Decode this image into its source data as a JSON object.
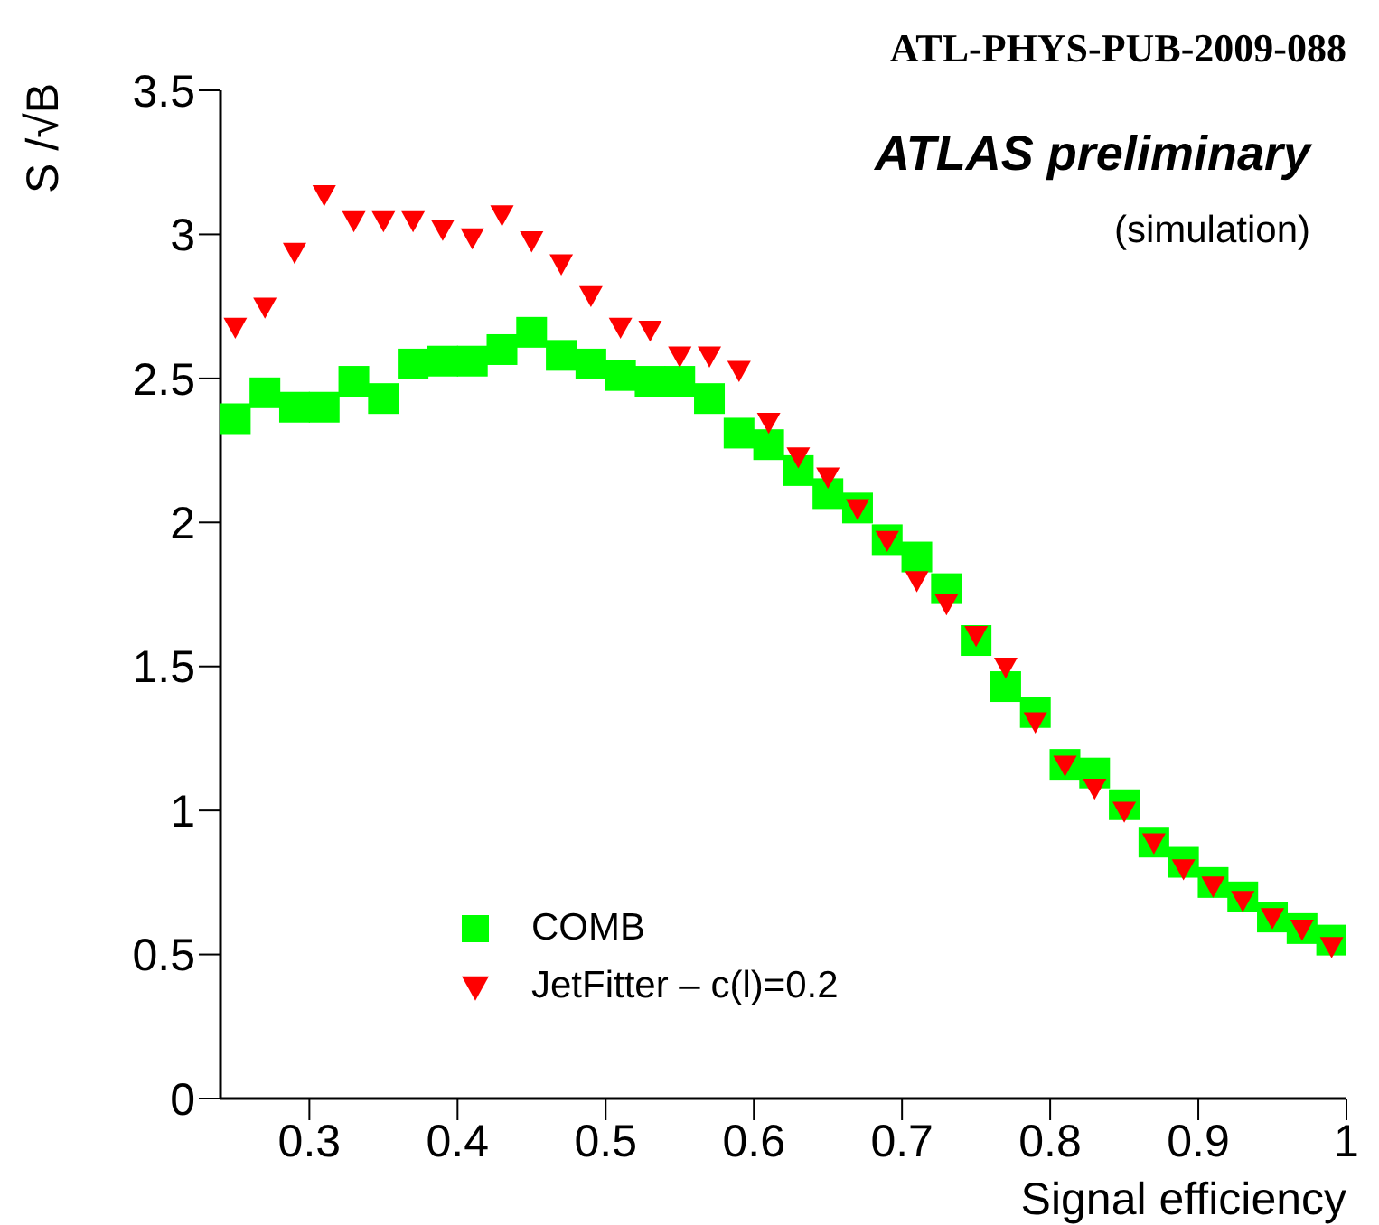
{
  "chart_data": {
    "type": "scatter",
    "title": "ATL-PHYS-PUB-2009-088",
    "xlabel": "Signal efficiency",
    "ylabel": "S /√B",
    "annotations": [
      "ATLAS preliminary",
      "(simulation)"
    ],
    "x": [
      0.25,
      0.27,
      0.29,
      0.31,
      0.33,
      0.35,
      0.37,
      0.39,
      0.41,
      0.43,
      0.45,
      0.47,
      0.49,
      0.51,
      0.53,
      0.55,
      0.57,
      0.59,
      0.61,
      0.63,
      0.65,
      0.67,
      0.69,
      0.71,
      0.73,
      0.75,
      0.77,
      0.79,
      0.81,
      0.83,
      0.85,
      0.87,
      0.89,
      0.91,
      0.93,
      0.95,
      0.97,
      0.99
    ],
    "series": [
      {
        "name": "COMB",
        "color": "#00ff00",
        "marker": "square",
        "values": [
          2.36,
          2.45,
          2.4,
          2.4,
          2.49,
          2.43,
          2.55,
          2.56,
          2.56,
          2.6,
          2.66,
          2.58,
          2.55,
          2.51,
          2.49,
          2.49,
          2.43,
          2.31,
          2.27,
          2.18,
          2.1,
          2.05,
          1.94,
          1.88,
          1.77,
          1.59,
          1.43,
          1.34,
          1.16,
          1.13,
          1.02,
          0.89,
          0.82,
          0.75,
          0.7,
          0.63,
          0.59,
          0.55
        ]
      },
      {
        "name": "JetFitter – c(l)=0.2",
        "color": "#ff0000",
        "marker": "triangle",
        "values": [
          2.68,
          2.75,
          2.94,
          3.14,
          3.05,
          3.05,
          3.05,
          3.02,
          2.99,
          3.07,
          2.98,
          2.9,
          2.79,
          2.68,
          2.67,
          2.58,
          2.58,
          2.53,
          2.35,
          2.23,
          2.16,
          2.05,
          1.94,
          1.8,
          1.72,
          1.61,
          1.5,
          1.31,
          1.16,
          1.08,
          1.0,
          0.89,
          0.8,
          0.74,
          0.69,
          0.63,
          0.59,
          0.53
        ]
      }
    ],
    "xlim": [
      0.24,
      1
    ],
    "xticks": [
      0.3,
      0.4,
      0.5,
      0.6,
      0.7,
      0.8,
      0.9,
      1
    ],
    "ylim": [
      0,
      3.5
    ],
    "yticks": [
      0,
      0.5,
      1,
      1.5,
      2,
      2.5,
      3,
      3.5
    ],
    "legend": "bottom left"
  }
}
